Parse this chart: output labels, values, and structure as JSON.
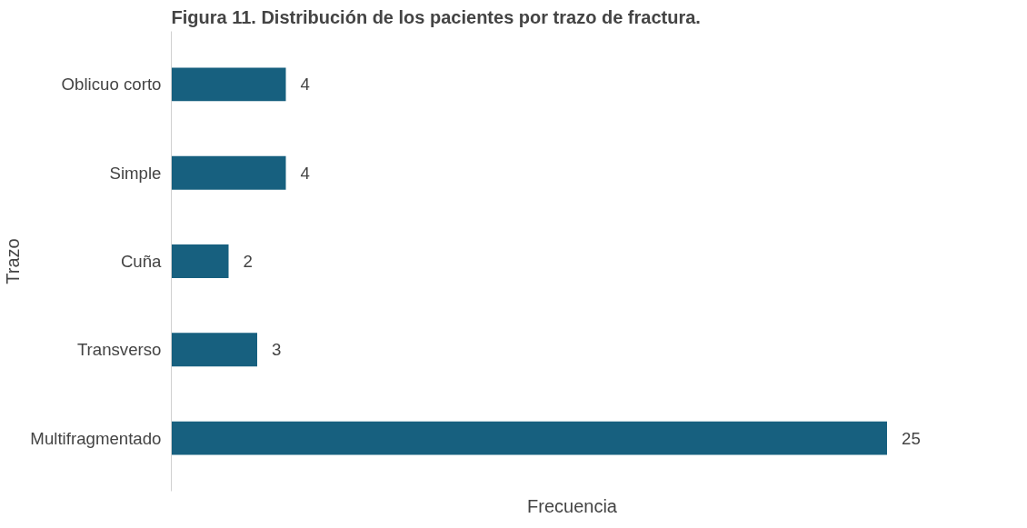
{
  "chart_data": {
    "type": "bar",
    "orientation": "horizontal",
    "title": "Figura 11. Distribución de los pacientes por trazo de fractura.",
    "xlabel": "Frecuencia",
    "ylabel": "Trazo",
    "categories": [
      "Oblicuo corto",
      "Simple",
      "Cuña",
      "Transverso",
      "Multifragmentado"
    ],
    "values": [
      4,
      4,
      2,
      3,
      25
    ],
    "color": "#17607f",
    "data_labels": true,
    "grid": false
  }
}
